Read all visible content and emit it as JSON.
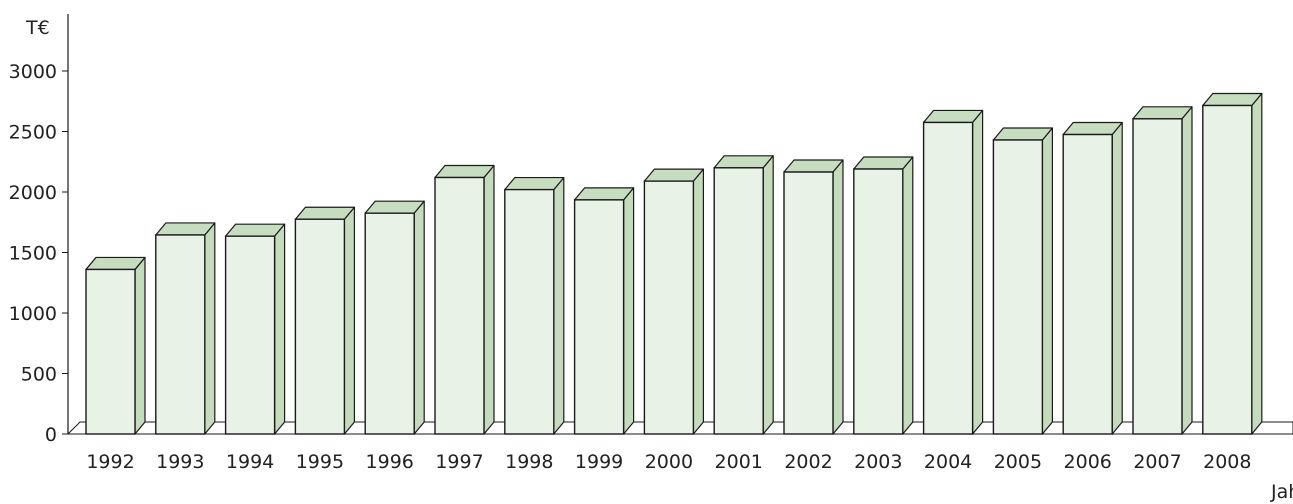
{
  "chart_data": {
    "type": "bar",
    "ylabel": "T€",
    "xlabel": "Jahr",
    "ylim": [
      0,
      3000
    ],
    "yticks": [
      0,
      500,
      1000,
      1500,
      2000,
      2500,
      3000
    ],
    "categories": [
      "1992",
      "1993",
      "1994",
      "1995",
      "1996",
      "1997",
      "1998",
      "1999",
      "2000",
      "2001",
      "2002",
      "2003",
      "2004",
      "2005",
      "2006",
      "2007",
      "2008"
    ],
    "values": [
      1360,
      1645,
      1635,
      1775,
      1825,
      2120,
      2020,
      1935,
      2090,
      2200,
      2165,
      2190,
      2575,
      2430,
      2475,
      2605,
      2715
    ],
    "colors": {
      "bar_front": "#e8f2e6",
      "bar_top": "#c6ddbf",
      "bar_side": "#c4dbbc",
      "stroke": "#1a1a1a"
    },
    "grid": false,
    "legend": "none"
  }
}
